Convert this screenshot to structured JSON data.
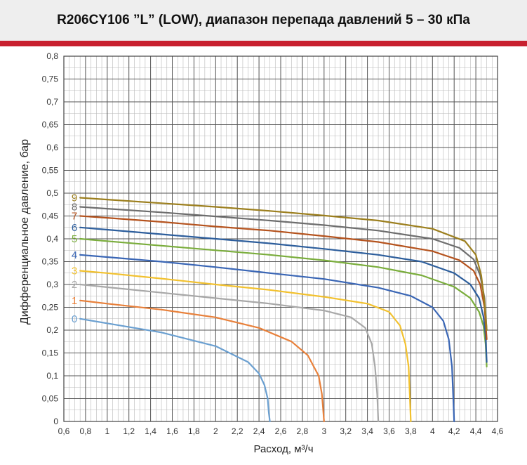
{
  "header": {
    "title": "R206CY106 ”L” (LOW), диапазон перепада давлений 5 – 30 кПа",
    "accent_color": "#c8202f"
  },
  "chart_data": {
    "type": "line",
    "title": "R206CY106 ”L” (LOW), диапазон перепада давлений 5 – 30 кПа",
    "xlabel": "Расход, м³/ч",
    "ylabel": "Дифференциальное давление, бар",
    "xlim": [
      0.6,
      4.6
    ],
    "ylim": [
      0,
      0.8
    ],
    "xticks": [
      "0,6",
      "0,8",
      "1",
      "1,2",
      "1,4",
      "1,6",
      "1,8",
      "2",
      "2,2",
      "2,4",
      "2,6",
      "2,8",
      "3",
      "3,2",
      "3,4",
      "3,6",
      "3,8",
      "4",
      "4,2",
      "4,4",
      "4,6"
    ],
    "yticks": [
      "0",
      "0,05",
      "0,1",
      "0,15",
      "0,2",
      "0,25",
      "0,3",
      "0,35",
      "0,4",
      "0,45",
      "0,5",
      "0,55",
      "0,6",
      "0,65",
      "0,7",
      "0,75",
      "0,8"
    ],
    "grid": true,
    "minor_grid_step_x": 0.05,
    "minor_grid_step_y": 0.025,
    "series": [
      {
        "name": "0",
        "color": "#6a9fd0",
        "x": [
          0.75,
          1.0,
          1.5,
          2.0,
          2.3,
          2.4,
          2.45,
          2.48,
          2.49,
          2.5
        ],
        "y": [
          0.225,
          0.215,
          0.195,
          0.165,
          0.13,
          0.105,
          0.08,
          0.05,
          0.02,
          0.0
        ]
      },
      {
        "name": "1",
        "color": "#e8803a",
        "x": [
          0.75,
          1.0,
          1.5,
          2.0,
          2.4,
          2.7,
          2.85,
          2.95,
          2.98,
          2.99,
          3.0
        ],
        "y": [
          0.265,
          0.258,
          0.245,
          0.228,
          0.205,
          0.175,
          0.145,
          0.1,
          0.06,
          0.03,
          0.0
        ]
      },
      {
        "name": "2",
        "color": "#a8a8a8",
        "x": [
          0.75,
          1.0,
          1.5,
          2.0,
          2.5,
          3.0,
          3.25,
          3.38,
          3.44,
          3.47,
          3.49,
          3.5
        ],
        "y": [
          0.3,
          0.294,
          0.282,
          0.27,
          0.258,
          0.243,
          0.228,
          0.205,
          0.17,
          0.12,
          0.06,
          0.0
        ]
      },
      {
        "name": "3",
        "color": "#f2c12e",
        "x": [
          0.75,
          1.0,
          1.5,
          2.0,
          2.5,
          3.0,
          3.4,
          3.6,
          3.7,
          3.75,
          3.78,
          3.79,
          3.8
        ],
        "y": [
          0.33,
          0.325,
          0.313,
          0.3,
          0.288,
          0.273,
          0.258,
          0.24,
          0.21,
          0.17,
          0.12,
          0.06,
          0.0
        ]
      },
      {
        "name": "4",
        "color": "#3a66b5",
        "x": [
          0.75,
          1.0,
          1.5,
          2.0,
          2.5,
          3.0,
          3.5,
          3.8,
          4.0,
          4.1,
          4.15,
          4.18,
          4.19,
          4.2
        ],
        "y": [
          0.365,
          0.36,
          0.35,
          0.338,
          0.325,
          0.312,
          0.293,
          0.275,
          0.25,
          0.22,
          0.18,
          0.12,
          0.06,
          0.0
        ]
      },
      {
        "name": "5",
        "color": "#7aad3c",
        "x": [
          0.75,
          1.0,
          1.5,
          2.0,
          2.5,
          3.0,
          3.5,
          3.9,
          4.2,
          4.35,
          4.43,
          4.47,
          4.49,
          4.5
        ],
        "y": [
          0.4,
          0.395,
          0.385,
          0.375,
          0.365,
          0.353,
          0.338,
          0.32,
          0.295,
          0.27,
          0.24,
          0.21,
          0.17,
          0.12
        ]
      },
      {
        "name": "6",
        "color": "#2d5e9c",
        "x": [
          0.75,
          1.0,
          1.5,
          2.0,
          2.5,
          3.0,
          3.5,
          3.9,
          4.2,
          4.35,
          4.43,
          4.47,
          4.49,
          4.5
        ],
        "y": [
          0.425,
          0.42,
          0.41,
          0.4,
          0.39,
          0.378,
          0.365,
          0.35,
          0.325,
          0.3,
          0.27,
          0.23,
          0.19,
          0.13
        ]
      },
      {
        "name": "7",
        "color": "#b5531e",
        "x": [
          0.75,
          1.0,
          1.5,
          2.0,
          2.5,
          3.0,
          3.5,
          4.0,
          4.25,
          4.38,
          4.44,
          4.48,
          4.5
        ],
        "y": [
          0.45,
          0.446,
          0.437,
          0.427,
          0.418,
          0.406,
          0.393,
          0.373,
          0.353,
          0.33,
          0.3,
          0.25,
          0.18
        ]
      },
      {
        "name": "8",
        "color": "#6e6e6e",
        "x": [
          0.75,
          1.0,
          1.5,
          2.0,
          2.5,
          3.0,
          3.5,
          4.0,
          4.25,
          4.38,
          4.44,
          4.48,
          4.5
        ],
        "y": [
          0.47,
          0.466,
          0.458,
          0.449,
          0.44,
          0.43,
          0.418,
          0.4,
          0.38,
          0.355,
          0.32,
          0.27,
          0.2
        ]
      },
      {
        "name": "9",
        "color": "#9c7f1e",
        "x": [
          0.75,
          1.0,
          1.5,
          2.0,
          2.5,
          3.0,
          3.5,
          4.0,
          4.3,
          4.4,
          4.45,
          4.48,
          4.5
        ],
        "y": [
          0.49,
          0.486,
          0.478,
          0.47,
          0.461,
          0.451,
          0.44,
          0.422,
          0.395,
          0.365,
          0.32,
          0.26,
          0.2
        ]
      }
    ]
  }
}
